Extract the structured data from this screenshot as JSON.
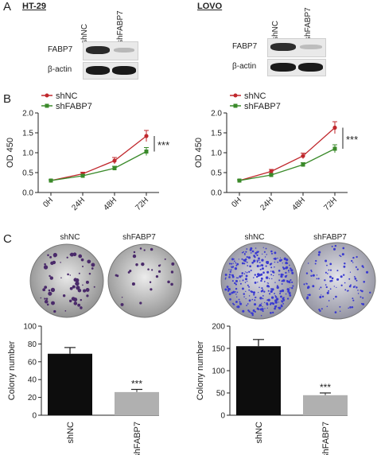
{
  "panels": {
    "a": "A",
    "b": "B",
    "c": "C"
  },
  "western": {
    "ht29": {
      "title": "HT-29",
      "lanes": [
        "shNC",
        "shFABP7"
      ],
      "rows": [
        "FABP7",
        "β-actin"
      ]
    },
    "lovo": {
      "title": "LOVO",
      "lanes": [
        "shNC",
        "shFABP7"
      ],
      "rows": [
        "FABP7",
        "β-actin"
      ]
    }
  },
  "colors": {
    "shNC": "#c0282d",
    "shFABP7": "#3a8a2a",
    "bar_shNC": "#0d0d0d",
    "bar_shFABP7": "#b0b0b0"
  },
  "colony_labels": {
    "ht29": [
      "shNC",
      "shFABP7"
    ],
    "lovo": [
      "shNC",
      "shFABP7"
    ]
  },
  "chart_data": [
    {
      "type": "line",
      "x": [
        "0H",
        "24H",
        "48H",
        "72H"
      ],
      "series": [
        {
          "name": "shNC",
          "values": [
            0.3,
            0.47,
            0.8,
            1.42
          ],
          "err": [
            0.02,
            0.04,
            0.08,
            0.14
          ]
        },
        {
          "name": "shFABP7",
          "values": [
            0.3,
            0.42,
            0.61,
            1.03
          ],
          "err": [
            0.02,
            0.03,
            0.05,
            0.1
          ]
        }
      ],
      "ylabel": "OD 450",
      "ylim": [
        0,
        2.0
      ],
      "yticks": [
        "0.0",
        "0.5",
        "1.0",
        "1.5",
        "2.0"
      ],
      "annotation": "***"
    },
    {
      "type": "line",
      "x": [
        "0H",
        "24H",
        "48H",
        "72H"
      ],
      "series": [
        {
          "name": "shNC",
          "values": [
            0.3,
            0.53,
            0.92,
            1.63
          ],
          "err": [
            0.02,
            0.05,
            0.07,
            0.15
          ]
        },
        {
          "name": "shFABP7",
          "values": [
            0.3,
            0.44,
            0.7,
            1.1
          ],
          "err": [
            0.02,
            0.03,
            0.05,
            0.1
          ]
        }
      ],
      "ylabel": "OD 450",
      "ylim": [
        0,
        2.0
      ],
      "yticks": [
        "0.0",
        "0.5",
        "1.0",
        "1.5",
        "2.0"
      ],
      "annotation": "***"
    },
    {
      "type": "bar",
      "categories": [
        "shNC",
        "shFABP7"
      ],
      "values": [
        69,
        26
      ],
      "err": [
        7,
        3
      ],
      "ylabel": "Colony number",
      "ylim": [
        0,
        100
      ],
      "yticks": [
        "0",
        "20",
        "40",
        "60",
        "80",
        "100"
      ],
      "annotation": "***"
    },
    {
      "type": "bar",
      "categories": [
        "shNC",
        "shFABP7"
      ],
      "values": [
        155,
        45
      ],
      "err": [
        15,
        5
      ],
      "ylabel": "Colony number",
      "ylim": [
        0,
        200
      ],
      "yticks": [
        "0",
        "50",
        "100",
        "150",
        "200"
      ],
      "annotation": "***"
    }
  ]
}
